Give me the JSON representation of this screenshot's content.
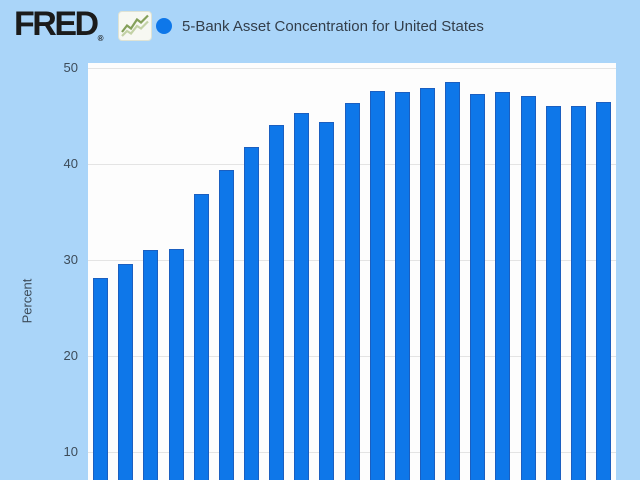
{
  "header": {
    "logo_text": "FRED",
    "registered_mark": "®",
    "legend": {
      "label": "5-Bank Asset Concentration for United States"
    }
  },
  "y_axis": {
    "title": "Percent",
    "tick_labels": [
      "50",
      "40",
      "30",
      "20",
      "10"
    ]
  },
  "colors": {
    "page_bg": "#aad5f9",
    "plot_bg": "#fdfdfd",
    "bar": "#0e77e9",
    "bar_border": "#1b5fc0",
    "gridline": "#e4e4e4",
    "tick_text": "#3d4c5a",
    "title_text": "#333e4a",
    "logo": "#1b1b1b",
    "legend_marker": "#0e77e9",
    "icon_line_dark": "#84a05a",
    "icon_line_light": "#c3d2a6",
    "icon_bg": "#f7f8f2"
  },
  "chart_data": {
    "type": "bar",
    "title": "5-Bank Asset Concentration for United States",
    "xlabel": "",
    "ylabel": "Percent",
    "yticks": [
      10,
      20,
      30,
      40,
      50
    ],
    "ylim": [
      0,
      50
    ],
    "visible_y_range_bottom_cropped": true,
    "x_axis_labels_visible": false,
    "grid": true,
    "legend_position": "top",
    "series_marker_color": "#0e77e9",
    "values": [
      28.1,
      29.6,
      31.0,
      31.1,
      36.9,
      39.4,
      41.8,
      44.1,
      45.3,
      44.4,
      46.4,
      47.6,
      47.5,
      47.9,
      48.5,
      47.3,
      47.5,
      47.1,
      46.0,
      46.0,
      46.5
    ]
  }
}
